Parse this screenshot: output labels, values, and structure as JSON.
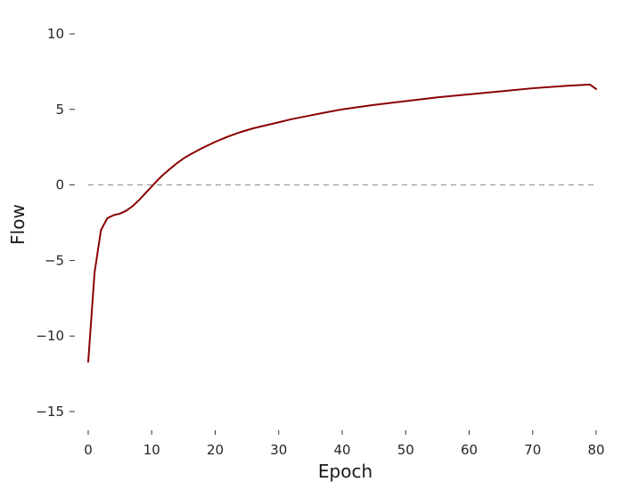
{
  "chart_data": {
    "type": "line",
    "xlabel": "Epoch",
    "ylabel": "Flow",
    "xlim": [
      0,
      80
    ],
    "ylim": [
      -16.5,
      11.5
    ],
    "xticks": [
      0,
      10,
      20,
      30,
      40,
      50,
      60,
      70,
      80
    ],
    "yticks": [
      10,
      5,
      0,
      -5,
      -10,
      -15
    ],
    "ytick_labels": [
      "10",
      "5",
      "0",
      "−5",
      "−10",
      "−15"
    ],
    "grid": false,
    "reference_line": {
      "y": 0,
      "style": "dashed",
      "color": "#888888"
    },
    "series": [
      {
        "color": "#8b0000",
        "x": [
          0,
          1,
          2,
          3,
          4,
          5,
          6,
          7,
          8,
          9,
          10,
          11,
          12,
          13,
          14,
          15,
          16,
          18,
          20,
          22,
          24,
          26,
          28,
          30,
          32,
          35,
          38,
          40,
          45,
          50,
          55,
          60,
          65,
          70,
          75,
          79,
          80
        ],
        "y": [
          -11.7,
          -5.8,
          -3.0,
          -2.2,
          -2.0,
          -1.9,
          -1.7,
          -1.4,
          -1.0,
          -0.55,
          -0.1,
          0.35,
          0.75,
          1.1,
          1.45,
          1.75,
          2.0,
          2.45,
          2.85,
          3.2,
          3.5,
          3.75,
          3.95,
          4.15,
          4.35,
          4.6,
          4.85,
          5.0,
          5.3,
          5.55,
          5.8,
          6.0,
          6.2,
          6.4,
          6.55,
          6.65,
          6.35
        ]
      }
    ]
  }
}
